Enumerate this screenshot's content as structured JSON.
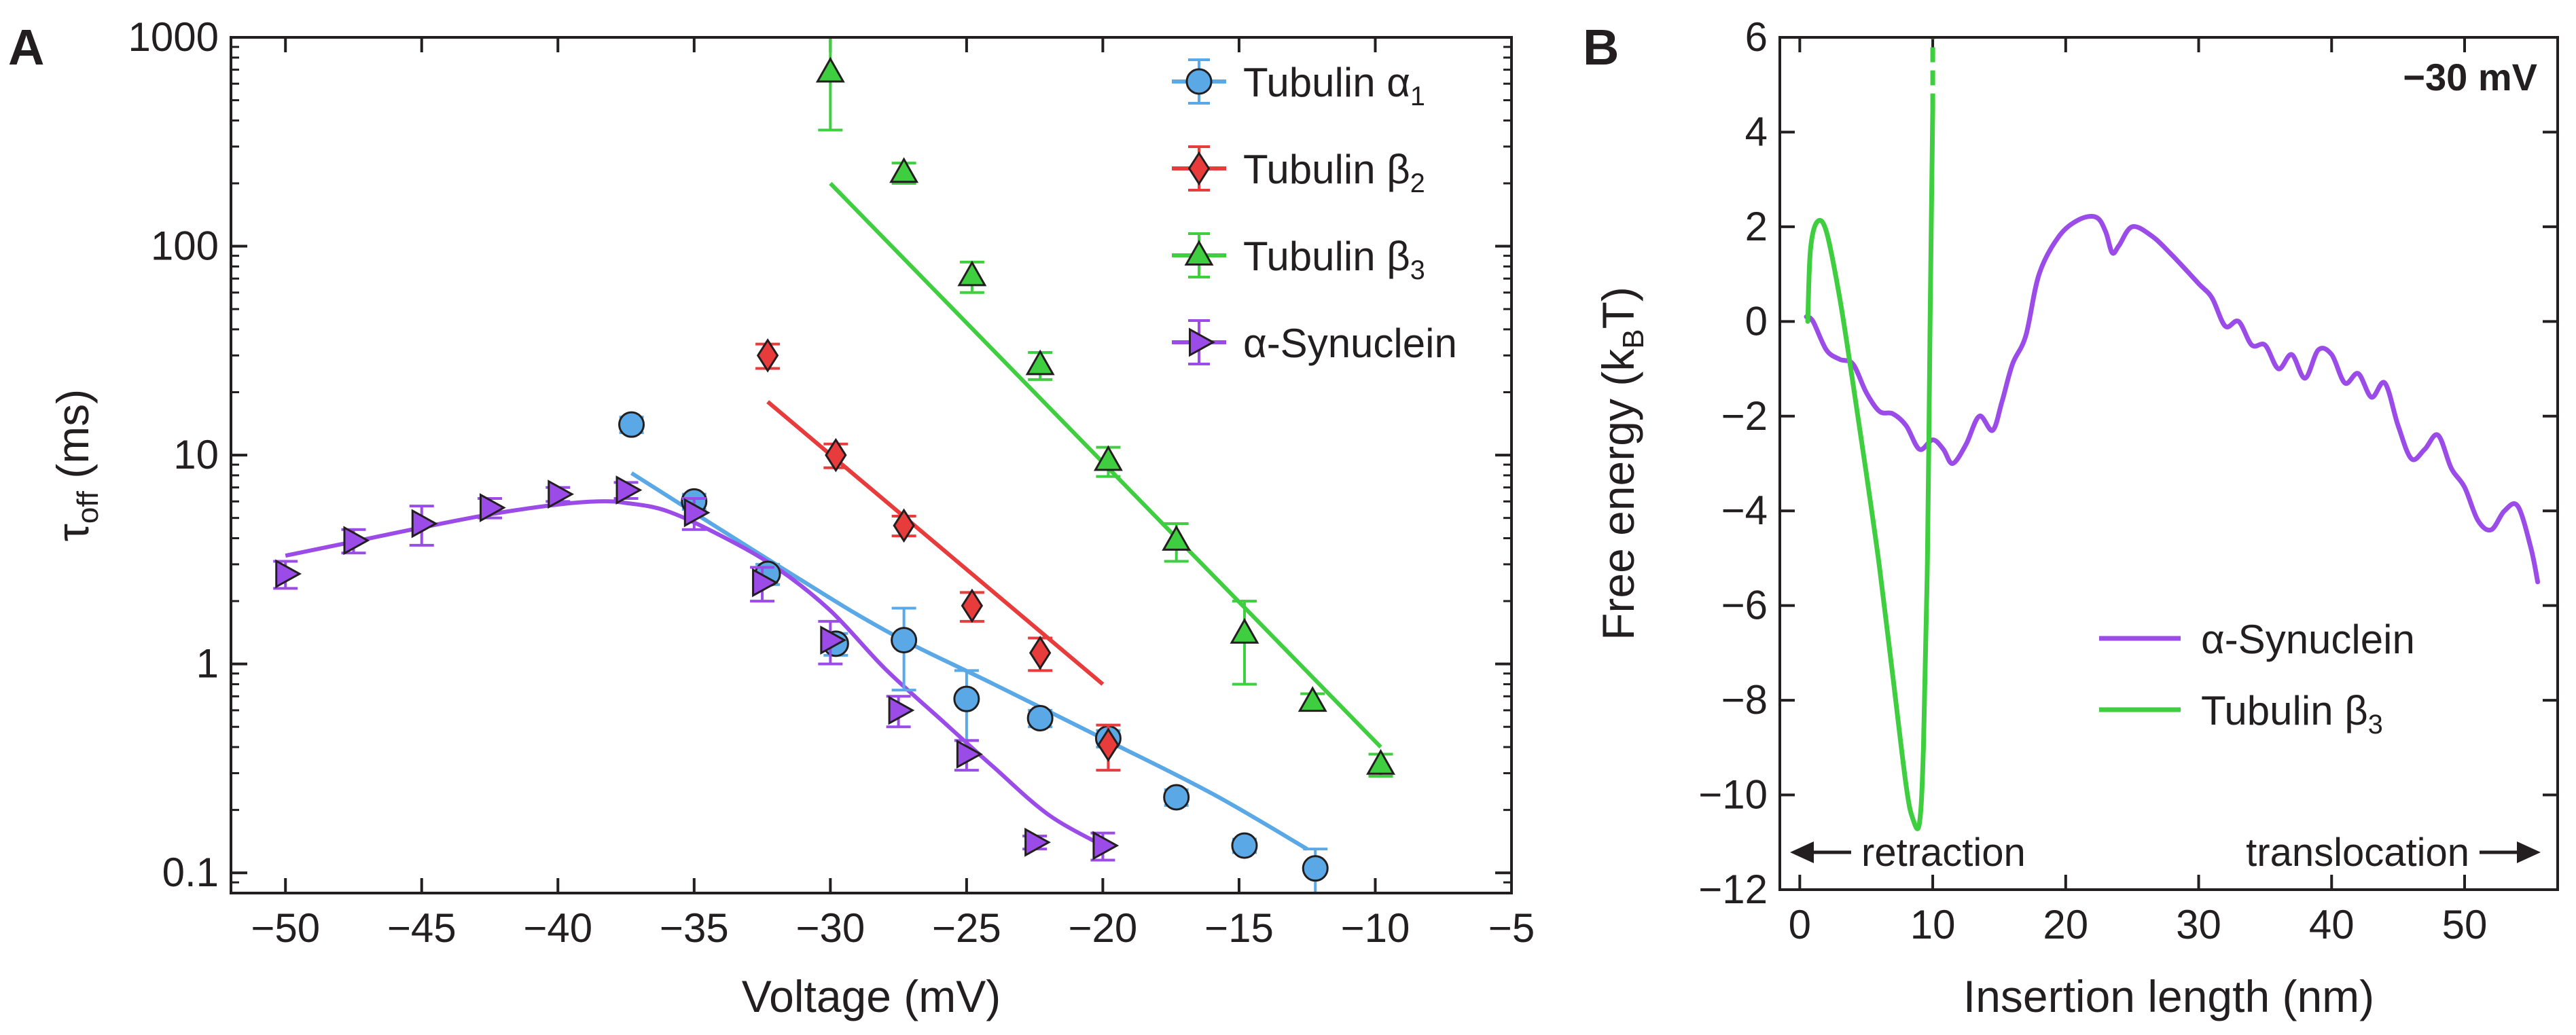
{
  "chart_data": [
    {
      "panel_label": "A",
      "type": "scatter",
      "xlabel": "Voltage (mV)",
      "ylabel": {
        "main": "τ",
        "sub": "off",
        "unit": " (ms)"
      },
      "xlim": [
        -52,
        -5
      ],
      "ylim": [
        0.08,
        1000
      ],
      "yscale": "log",
      "grid": false,
      "legend_position": "top-right",
      "x_ticks": [
        -50,
        -45,
        -40,
        -35,
        -30,
        -25,
        -20,
        -15,
        -10,
        -5
      ],
      "x_tick_labels": [
        "−50",
        "−45",
        "−40",
        "−35",
        "−30",
        "−25",
        "−20",
        "−15",
        "−10",
        "−5"
      ],
      "y_ticks": [
        0.1,
        1,
        10,
        100,
        1000
      ],
      "y_tick_labels": [
        "0.1",
        "1",
        "10",
        "100",
        "1000"
      ],
      "series": [
        {
          "name": "Tubulin α",
          "name_sub": "1",
          "marker": "circle",
          "color": "#5aa9e6",
          "points": [
            {
              "x": -37.3,
              "y": 14,
              "err": 1.2
            },
            {
              "x": -35,
              "y": 6.0,
              "err": 0.5
            },
            {
              "x": -32.3,
              "y": 2.7,
              "err": 0.3
            },
            {
              "x": -29.8,
              "y": 1.25,
              "err": 0.15
            },
            {
              "x": -27.3,
              "y": 1.3,
              "err": 0.55
            },
            {
              "x": -25,
              "y": 0.68,
              "err": 0.25
            },
            {
              "x": -22.3,
              "y": 0.55,
              "err": 0.05
            },
            {
              "x": -19.8,
              "y": 0.44,
              "err": 0.04
            },
            {
              "x": -17.3,
              "y": 0.23,
              "err": 0.02
            },
            {
              "x": -14.8,
              "y": 0.135,
              "err": 0.01
            },
            {
              "x": -12.2,
              "y": 0.105,
              "err": 0.025
            }
          ],
          "fit": [
            [
              -37.3,
              8.2
            ],
            [
              -32,
              3.0
            ],
            [
              -28,
              1.45
            ],
            [
              -24,
              0.8
            ],
            [
              -20,
              0.44
            ],
            [
              -16,
              0.24
            ],
            [
              -12.5,
              0.13
            ]
          ]
        },
        {
          "name": "Tubulin β",
          "name_sub": "2",
          "marker": "diamond",
          "color": "#e83b3b",
          "points": [
            {
              "x": -32.3,
              "y": 30,
              "err": 4
            },
            {
              "x": -29.8,
              "y": 10,
              "err": 1.3
            },
            {
              "x": -27.3,
              "y": 4.6,
              "err": 0.5
            },
            {
              "x": -24.8,
              "y": 1.9,
              "err": 0.3
            },
            {
              "x": -22.3,
              "y": 1.13,
              "err": 0.2
            },
            {
              "x": -19.8,
              "y": 0.41,
              "err": 0.1
            }
          ],
          "fit": [
            [
              -32.3,
              18
            ],
            [
              -20,
              0.8
            ]
          ]
        },
        {
          "name": "Tubulin β",
          "name_sub": "3",
          "marker": "triangle",
          "color": "#3fce3f",
          "points": [
            {
              "x": -30,
              "y": 680,
              "err": 320
            },
            {
              "x": -27.3,
              "y": 225,
              "err": 25
            },
            {
              "x": -24.8,
              "y": 72,
              "err": 12
            },
            {
              "x": -22.3,
              "y": 27,
              "err": 4
            },
            {
              "x": -19.8,
              "y": 9.4,
              "err": 1.5
            },
            {
              "x": -17.3,
              "y": 3.9,
              "err": 0.8
            },
            {
              "x": -14.8,
              "y": 1.4,
              "err": 0.6
            },
            {
              "x": -12.3,
              "y": 0.66,
              "err": 0.06
            },
            {
              "x": -9.8,
              "y": 0.33,
              "err": 0.04
            }
          ],
          "fit": [
            [
              -30,
              200
            ],
            [
              -9.8,
              0.4
            ]
          ]
        },
        {
          "name": "α-Synuclein",
          "marker": "triangle-right",
          "color": "#9b4be8",
          "points": [
            {
              "x": -50,
              "y": 2.7,
              "err": 0.4
            },
            {
              "x": -47.5,
              "y": 3.9,
              "err": 0.5
            },
            {
              "x": -45,
              "y": 4.7,
              "err": 1.0
            },
            {
              "x": -42.5,
              "y": 5.6,
              "err": 0.6
            },
            {
              "x": -40,
              "y": 6.5,
              "err": 0.5
            },
            {
              "x": -37.5,
              "y": 6.8,
              "err": 0.6
            },
            {
              "x": -35,
              "y": 5.3,
              "err": 0.9
            },
            {
              "x": -32.5,
              "y": 2.45,
              "err": 0.45
            },
            {
              "x": -30,
              "y": 1.3,
              "err": 0.3
            },
            {
              "x": -27.5,
              "y": 0.6,
              "err": 0.1
            },
            {
              "x": -25,
              "y": 0.37,
              "err": 0.06
            },
            {
              "x": -22.5,
              "y": 0.14,
              "err": 0.01
            },
            {
              "x": -20,
              "y": 0.135,
              "err": 0.02
            }
          ],
          "fit": [
            [
              -50,
              3.3
            ],
            [
              -47.5,
              3.85
            ],
            [
              -45,
              4.5
            ],
            [
              -42.5,
              5.2
            ],
            [
              -40,
              5.8
            ],
            [
              -38.5,
              6.0
            ],
            [
              -37.5,
              5.9
            ],
            [
              -36,
              5.4
            ],
            [
              -34,
              4.1
            ],
            [
              -32,
              2.9
            ],
            [
              -30,
              1.8
            ],
            [
              -28,
              0.95
            ],
            [
              -26,
              0.55
            ],
            [
              -24,
              0.32
            ],
            [
              -22,
              0.19
            ],
            [
              -20,
              0.135
            ]
          ]
        }
      ]
    },
    {
      "panel_label": "B",
      "type": "line",
      "annotation": "−30 mV",
      "xlabel": "Insertion length (nm)",
      "ylabel": {
        "main": "Free energy (k",
        "sub": "B",
        "unit": "T)"
      },
      "xlim": [
        -1.5,
        57
      ],
      "ylim": [
        -12,
        6
      ],
      "grid": false,
      "legend_position": "bottom-right",
      "x_ticks": [
        0,
        10,
        20,
        30,
        40,
        50
      ],
      "x_tick_labels": [
        "0",
        "10",
        "20",
        "30",
        "40",
        "50"
      ],
      "y_ticks": [
        -12,
        -10,
        -8,
        -6,
        -4,
        -2,
        0,
        2,
        4,
        6
      ],
      "y_tick_labels": [
        "−12",
        "−10",
        "−8",
        "−6",
        "−4",
        "−2",
        "0",
        "2",
        "4",
        "6"
      ],
      "arrow_left_label": "retraction",
      "arrow_right_label": "translocation",
      "series": [
        {
          "name": "α-Synuclein",
          "color": "#9b4be8",
          "points": [
            [
              0.5,
              0.1
            ],
            [
              1,
              0
            ],
            [
              2,
              -0.6
            ],
            [
              3,
              -0.8
            ],
            [
              4,
              -0.9
            ],
            [
              5,
              -1.5
            ],
            [
              6,
              -1.9
            ],
            [
              7,
              -1.95
            ],
            [
              8,
              -2.2
            ],
            [
              9,
              -2.7
            ],
            [
              10,
              -2.5
            ],
            [
              10.8,
              -2.7
            ],
            [
              11.5,
              -3.0
            ],
            [
              12.5,
              -2.6
            ],
            [
              13.5,
              -2.0
            ],
            [
              14.5,
              -2.3
            ],
            [
              15.2,
              -1.7
            ],
            [
              16,
              -0.9
            ],
            [
              17,
              -0.3
            ],
            [
              18,
              1.0
            ],
            [
              19.5,
              1.8
            ],
            [
              21,
              2.15
            ],
            [
              22.3,
              2.2
            ],
            [
              23,
              1.9
            ],
            [
              23.5,
              1.45
            ],
            [
              24,
              1.6
            ],
            [
              25,
              2.0
            ],
            [
              26.5,
              1.8
            ],
            [
              28,
              1.4
            ],
            [
              30,
              0.8
            ],
            [
              31,
              0.5
            ],
            [
              32,
              -0.1
            ],
            [
              33,
              0.0
            ],
            [
              34,
              -0.5
            ],
            [
              35,
              -0.5
            ],
            [
              36,
              -1.0
            ],
            [
              37,
              -0.7
            ],
            [
              38,
              -1.2
            ],
            [
              39,
              -0.6
            ],
            [
              40,
              -0.7
            ],
            [
              41,
              -1.3
            ],
            [
              42,
              -1.1
            ],
            [
              43,
              -1.6
            ],
            [
              44,
              -1.3
            ],
            [
              45,
              -2.2
            ],
            [
              46,
              -2.9
            ],
            [
              47,
              -2.7
            ],
            [
              48,
              -2.4
            ],
            [
              49,
              -3.1
            ],
            [
              50,
              -3.5
            ],
            [
              51,
              -4.2
            ],
            [
              52,
              -4.4
            ],
            [
              53,
              -4.0
            ],
            [
              54,
              -3.9
            ],
            [
              55,
              -4.8
            ],
            [
              55.5,
              -5.5
            ]
          ]
        },
        {
          "name": "Tubulin β",
          "name_sub": "3",
          "color": "#3fce3f",
          "points": [
            [
              0.6,
              0
            ],
            [
              0.8,
              1.5
            ],
            [
              1.3,
              2.1
            ],
            [
              2,
              1.9
            ],
            [
              3,
              0.5
            ],
            [
              4,
              -1.3
            ],
            [
              5,
              -3.2
            ],
            [
              6,
              -5.2
            ],
            [
              7,
              -7.5
            ],
            [
              8,
              -9.8
            ],
            [
              8.5,
              -10.5
            ],
            [
              9,
              -10.6
            ],
            [
              9.3,
              -9.0
            ],
            [
              9.6,
              -5.0
            ],
            [
              9.8,
              0
            ],
            [
              10,
              4.5
            ]
          ],
          "dashed_tail": [
            [
              10,
              4.5
            ],
            [
              10,
              6
            ]
          ]
        }
      ]
    }
  ]
}
